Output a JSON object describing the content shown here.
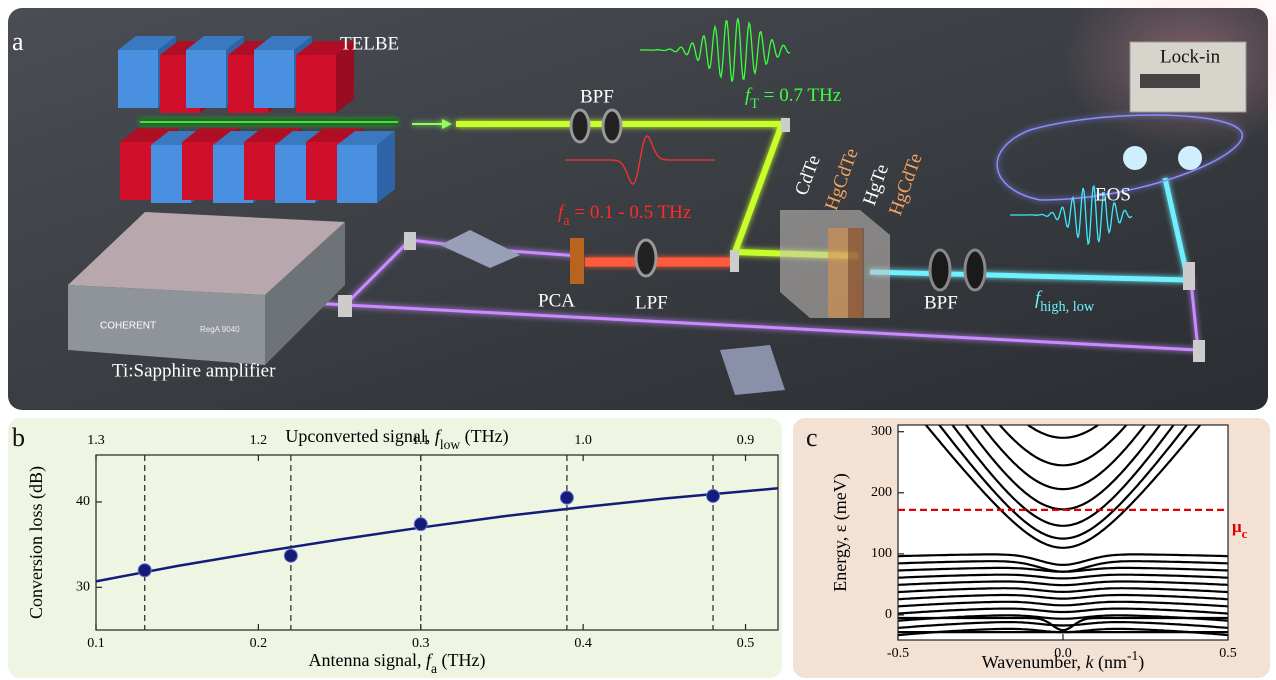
{
  "panel_a": {
    "label": "a",
    "telbe": "TELBE",
    "bpf_top": "BPF",
    "f_t": [
      {
        "text": "f",
        "style": "italic"
      },
      {
        "text": "T",
        "style": "sub"
      },
      {
        "text": " = 0.7 THz"
      }
    ],
    "f_a": [
      {
        "text": "f",
        "style": "italic"
      },
      {
        "text": "a",
        "style": "sub"
      },
      {
        "text": " = 0.1 - 0.5 THz"
      }
    ],
    "pca": "PCA",
    "lpf": "LPF",
    "layers": [
      "CdTe",
      "HgCdTe",
      "HgTe",
      "HgCdTe"
    ],
    "bpf_bottom": "BPF",
    "f_hl": [
      {
        "text": "f",
        "style": "italic"
      },
      {
        "text": "high, low",
        "style": "sub"
      }
    ],
    "eos": "EOS",
    "lockin": "Lock-in",
    "laser": "Ti:Sapphire amplifier",
    "brand": "COHERENT",
    "model": "RegA 9040"
  },
  "chart_data": [
    {
      "type": "scatter",
      "panel": "b",
      "x": [
        0.13,
        0.22,
        0.3,
        0.39,
        0.48
      ],
      "values": [
        32,
        33.7,
        37.4,
        40.5,
        40.7
      ],
      "color": "#141c7a",
      "fit": {
        "x": [
          0.1,
          0.15,
          0.2,
          0.25,
          0.3,
          0.35,
          0.4,
          0.45,
          0.52
        ],
        "values": [
          30.7,
          32.5,
          34.1,
          35.6,
          37,
          38.3,
          39.4,
          40.4,
          41.6
        ]
      },
      "vlines": true,
      "xlim": [
        0.1,
        0.52
      ],
      "xticks": [
        0.1,
        0.2,
        0.3,
        0.4,
        0.5
      ],
      "ylim": [
        25,
        45.5
      ],
      "yticks": [
        30,
        40
      ],
      "x2lim": [
        1.3,
        0.88
      ],
      "x2ticks": [
        1.3,
        1.2,
        1.1,
        {
          "value": 1,
          "label": "1.0"
        },
        0.9
      ],
      "xlabel": [
        {
          "text": "Antenna signal, "
        },
        {
          "text": "f",
          "style": "italic"
        },
        {
          "text": "a",
          "style": "sub"
        },
        {
          "text": " (THz)"
        }
      ],
      "x2label": [
        {
          "text": "Upconverted signal, "
        },
        {
          "text": "f",
          "style": "italic"
        },
        {
          "text": "low",
          "style": "sub"
        },
        {
          "text": " (THz)"
        }
      ],
      "ylabel": "Conversion loss (dB)"
    },
    {
      "type": "bands",
      "panel": "c",
      "xlim": [
        -0.5,
        0.5
      ],
      "xticks": [
        -0.5,
        {
          "value": 0,
          "label": "0.0"
        },
        0.5
      ],
      "ylim": [
        -41,
        311
      ],
      "yticks": [
        0,
        100,
        200,
        300
      ],
      "mu": {
        "value": 172,
        "color": "#e00000",
        "label": [
          {
            "text": "μ"
          },
          {
            "text": "c",
            "style": "sub"
          }
        ]
      },
      "xlabel": [
        {
          "text": "Wavenumber, "
        },
        {
          "text": "k",
          "style": "italic"
        },
        {
          "text": " (nm"
        },
        {
          "text": "-1",
          "style": "sup"
        },
        {
          "text": ")"
        }
      ],
      "ylabel": "Energy, ε (meV)"
    }
  ]
}
